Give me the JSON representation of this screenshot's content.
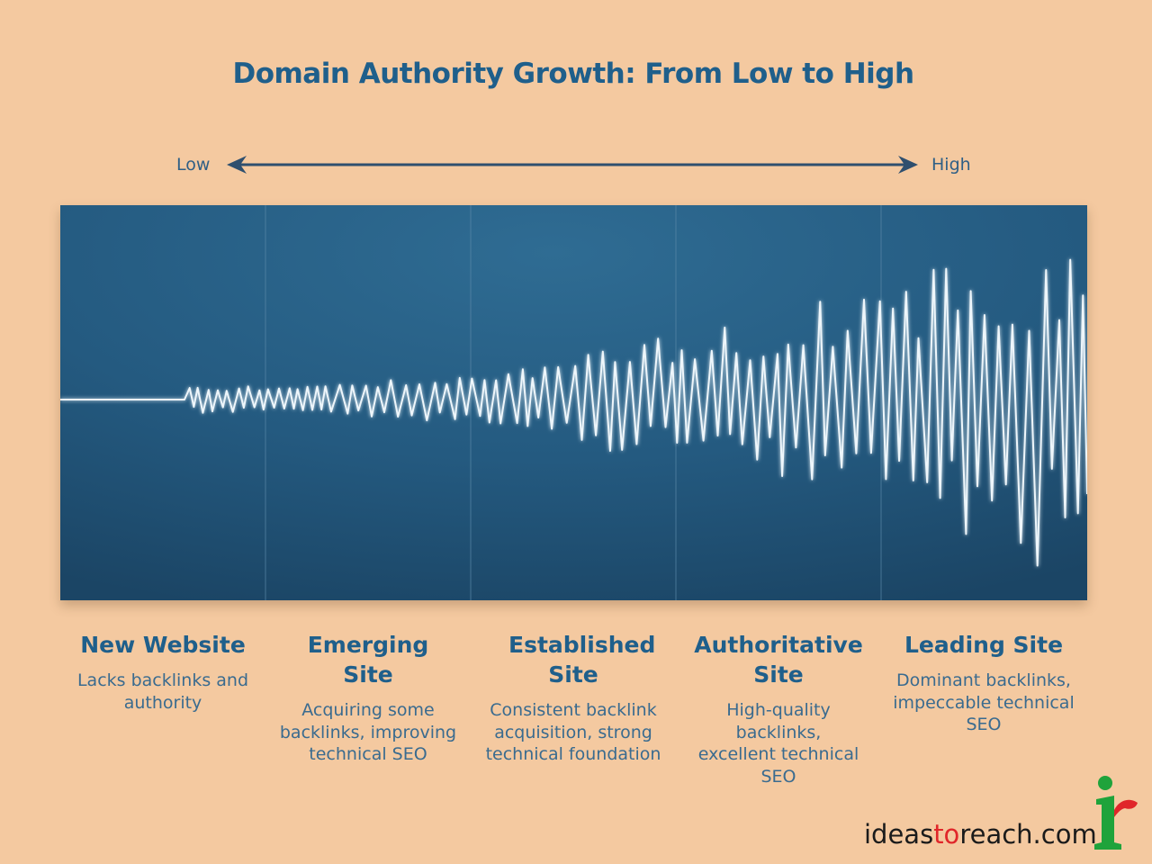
{
  "title": "Domain Authority Growth: From Low to High",
  "scale": {
    "low": "Low",
    "high": "High"
  },
  "colors": {
    "background": "#f4c9a0",
    "panel": "#1f4f72",
    "accent": "#1f5f8b",
    "wave": "#eef6fb",
    "brand_red": "#e0262a",
    "brand_green": "#1fa33b"
  },
  "stages": [
    {
      "title": "New Website",
      "description": "Lacks backlinks and authority"
    },
    {
      "title": "Emerging Site",
      "description": "Acquiring some backlinks, improving technical SEO"
    },
    {
      "title": "Established Site",
      "description": "Consistent backlink acquisition, strong technical foundation"
    },
    {
      "title": "Authoritative Site",
      "description": "High-quality backlinks, excellent technical SEO"
    },
    {
      "title": "Leading Site",
      "description": "Dominant backlinks, impeccable technical SEO"
    }
  ],
  "brand": {
    "before": "ideas",
    "highlight": "to",
    "after": "reach.com"
  },
  "icons": {
    "logo": "ideastoreach-ir-logo-icon",
    "arrow": "double-headed-arrow-icon"
  }
}
